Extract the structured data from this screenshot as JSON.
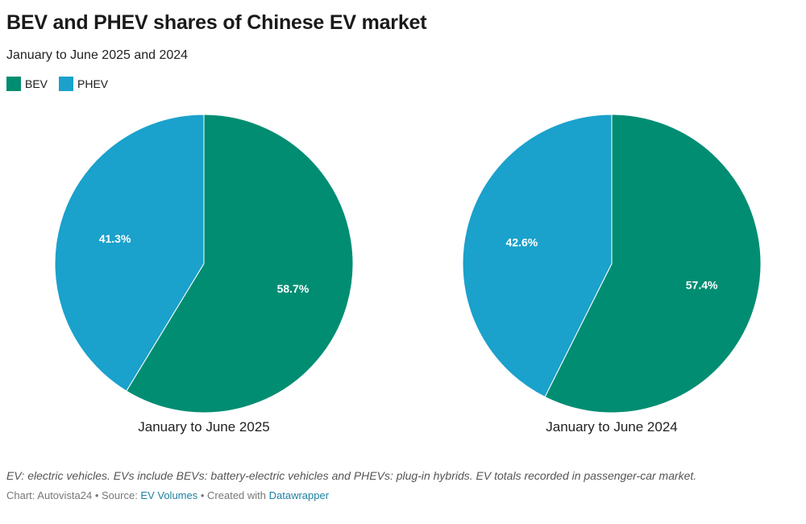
{
  "title": "BEV and PHEV shares of Chinese EV market",
  "subtitle": "January to June 2025 and 2024",
  "legend": [
    {
      "label": "BEV",
      "color": "#008d72"
    },
    {
      "label": "PHEV",
      "color": "#1aa1cc"
    }
  ],
  "chart_data": [
    {
      "type": "pie",
      "label": "January to June 2025",
      "slices": [
        {
          "name": "BEV",
          "value": 58.7,
          "display": "58.7%",
          "color": "#008d72"
        },
        {
          "name": "PHEV",
          "value": 41.3,
          "display": "41.3%",
          "color": "#1aa1cc"
        }
      ]
    },
    {
      "type": "pie",
      "label": "January to June 2024",
      "slices": [
        {
          "name": "BEV",
          "value": 57.4,
          "display": "57.4%",
          "color": "#008d72"
        },
        {
          "name": "PHEV",
          "value": 42.6,
          "display": "42.6%",
          "color": "#1aa1cc"
        }
      ]
    }
  ],
  "footer": {
    "note": "EV: electric vehicles. EVs include BEVs: battery-electric vehicles and PHEVs: plug-in hybrids. EV totals recorded in passenger-car market.",
    "credit_prefix": "Chart: Autovista24 • Source: ",
    "source_link": "EV Volumes",
    "credit_middle": " • Created with ",
    "tool_link": "Datawrapper"
  }
}
